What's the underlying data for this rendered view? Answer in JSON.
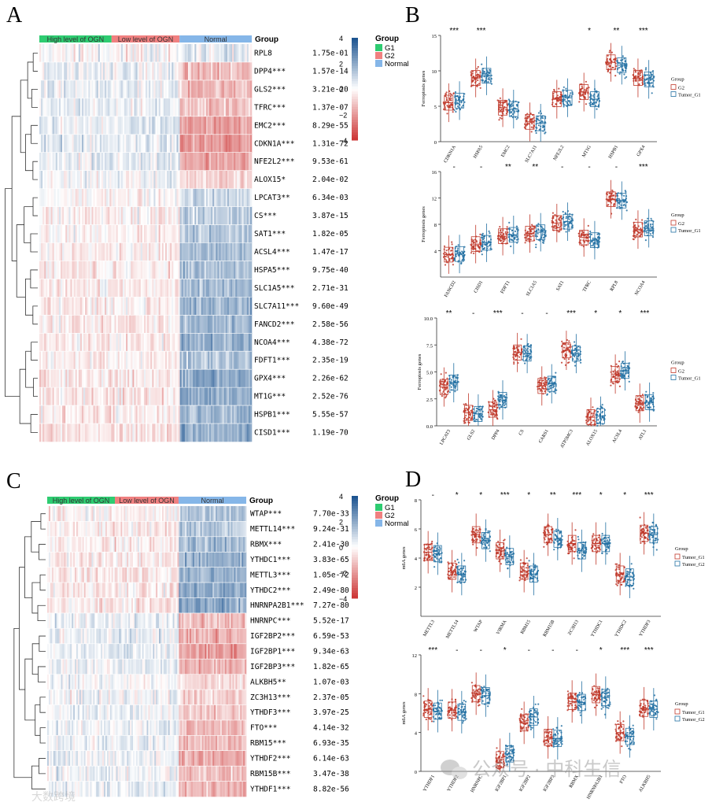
{
  "panels": {
    "A": {
      "label": "A",
      "group_bar": [
        "High level of OGN",
        "Low level of OGN",
        "Normal"
      ],
      "group_title": "Group",
      "legend_title": "Group",
      "legend_items": [
        "G1",
        "G2",
        "Normal"
      ],
      "scale_ticks": [
        "4",
        "2",
        "0",
        "−2",
        "−4"
      ],
      "genes": [
        "RPL8",
        "DPP4***",
        "GLS2***",
        "TFRC***",
        "EMC2***",
        "CDKN1A***",
        "NFE2L2***",
        "ALOX15*",
        "LPCAT3**",
        "CS***",
        "SAT1***",
        "ACSL4***",
        "HSPA5***",
        "SLC1A5***",
        "SLC7A11***",
        "FANCD2***",
        "NCOA4***",
        "FDFT1***",
        "GPX4***",
        "MT1G***",
        "HSPB1***",
        "CISD1***"
      ],
      "pvalues": [
        "1.75e-01",
        "1.57e-14",
        "3.21e-20",
        "1.37e-07",
        "8.29e-55",
        "1.31e-72",
        "9.53e-61",
        "2.04e-02",
        "6.34e-03",
        "3.87e-15",
        "1.82e-05",
        "1.47e-17",
        "9.75e-40",
        "2.71e-31",
        "9.60e-49",
        "2.58e-56",
        "4.38e-72",
        "2.35e-19",
        "2.26e-62",
        "2.52e-76",
        "5.55e-57",
        "1.19e-70"
      ]
    },
    "C": {
      "label": "C",
      "group_bar": [
        "High level of OGN",
        "Low level of OGN",
        "Normal"
      ],
      "group_title": "Group",
      "legend_title": "Group",
      "legend_items": [
        "G1",
        "G2",
        "Normal"
      ],
      "scale_ticks": [
        "4",
        "2",
        "0",
        "−2",
        "−4"
      ],
      "genes": [
        "WTAP***",
        "METTL14***",
        "RBMX***",
        "YTHDC1***",
        "METTL3***",
        "YTHDC2***",
        "HNRNPA2B1***",
        "HNRNPC***",
        "IGF2BP2***",
        "IGF2BP1***",
        "IGF2BP3***",
        "ALKBH5**",
        "ZC3H13***",
        "YTHDF3***",
        "FTO***",
        "RBM15***",
        "YTHDF2***",
        "RBM15B***",
        "YTHDF1***"
      ],
      "pvalues": [
        "7.70e-33",
        "9.24e-31",
        "2.41e-30",
        "3.83e-65",
        "1.05e-72",
        "2.49e-80",
        "7.27e-80",
        "5.52e-17",
        "6.59e-53",
        "9.34e-63",
        "1.82e-65",
        "1.07e-03",
        "2.37e-05",
        "3.97e-25",
        "4.14e-32",
        "6.93e-35",
        "6.14e-63",
        "3.47e-38",
        "8.82e-56"
      ]
    },
    "B": {
      "label": "B",
      "ylabel": "Ferroptosis genes",
      "legend_title": "Group",
      "legend_items": [
        "G2",
        "Tumor_G1"
      ],
      "rows": [
        {
          "ylim": [
            0,
            15
          ],
          "yticks": [
            "15",
            "10",
            "5",
            "0"
          ],
          "genes": [
            "CDKN1A",
            "HSPA5",
            "EMC2",
            "SLC7A11",
            "NFE2L2",
            "MT1G",
            "HSPB1",
            "GPX4"
          ],
          "sig": [
            "***",
            "***",
            "",
            "",
            "",
            "*",
            "**",
            "***"
          ],
          "medians": [
            [
              5.5,
              5.8
            ],
            [
              9,
              9.3
            ],
            [
              4.8,
              4.6
            ],
            [
              2.8,
              2.6
            ],
            [
              6,
              6.2
            ],
            [
              7,
              6
            ],
            [
              11.2,
              10.8
            ],
            [
              9,
              8.8
            ]
          ]
        },
        {
          "ylim": [
            0,
            16
          ],
          "yticks": [
            "16",
            "12",
            "8",
            "4"
          ],
          "genes": [
            "FANCD2",
            "CISD1",
            "FDFT1",
            "SLC1A5",
            "SAT1",
            "TFRC",
            "RPL8",
            "NCOA4"
          ],
          "sig": [
            "-",
            "-",
            "**",
            "**",
            "-",
            "-",
            "-",
            "***"
          ],
          "medians": [
            [
              3.4,
              3.5
            ],
            [
              5,
              5.2
            ],
            [
              6.2,
              6.4
            ],
            [
              6.6,
              6.8
            ],
            [
              8.2,
              8.4
            ],
            [
              6,
              5.6
            ],
            [
              11.8,
              11.6
            ],
            [
              7.2,
              7.4
            ]
          ]
        },
        {
          "ylim": [
            0,
            10
          ],
          "yticks": [
            "10.0",
            "7.5",
            "5.0",
            "2.5",
            "0.0"
          ],
          "genes": [
            "LPCAT3",
            "GLS2",
            "DPP4",
            "CS",
            "CARS1",
            "ATP5MC3",
            "ALOX15",
            "ACSL4",
            "ATL1"
          ],
          "sig": [
            "**",
            "-",
            "***",
            "-",
            "-",
            "***",
            "*",
            "*",
            "***"
          ],
          "medians": [
            [
              3.6,
              4
            ],
            [
              1.2,
              1.1
            ],
            [
              1.5,
              2.4
            ],
            [
              6.8,
              6.7
            ],
            [
              3.7,
              3.9
            ],
            [
              7,
              6.7
            ],
            [
              0.8,
              0.9
            ],
            [
              4.8,
              5.1
            ],
            [
              2.1,
              2.2
            ]
          ]
        }
      ]
    },
    "D": {
      "label": "D",
      "ylabel": "m6A genes",
      "legend_title": "Group",
      "legend_items": [
        "Tumor_G1",
        "Tumor_G2"
      ],
      "rows": [
        {
          "ylim": [
            0,
            8
          ],
          "yticks": [
            "8",
            "6",
            "4",
            "2"
          ],
          "genes": [
            "METTL3",
            "METTL14",
            "WTAP",
            "VIRMA",
            "RBM15",
            "RBM15B",
            "ZC3H13",
            "YTHDC1",
            "YTHDC2",
            "YTHDF3"
          ],
          "sig": [
            "-",
            "*",
            "*",
            "***",
            "*",
            "**",
            "***",
            "*",
            "*",
            "***"
          ],
          "medians": [
            [
              4.4,
              4.3
            ],
            [
              3.1,
              2.9
            ],
            [
              5.6,
              5.2
            ],
            [
              4.5,
              4.1
            ],
            [
              3.1,
              2.9
            ],
            [
              5.6,
              5.3
            ],
            [
              5,
              4.5
            ],
            [
              5,
              5
            ],
            [
              2.9,
              2.7
            ],
            [
              5.7,
              5.6
            ]
          ]
        },
        {
          "ylim": [
            0,
            12
          ],
          "yticks": [
            "12",
            "8",
            "4",
            "0"
          ],
          "genes": [
            "YTHDF1",
            "YTHDF2",
            "HNRNPC",
            "IGF2BP1",
            "IGF2BP2",
            "IGF2BP3",
            "RBMX",
            "HNRNPA2B1",
            "FTO",
            "ALKBH5"
          ],
          "sig": [
            "***",
            "-",
            "-",
            "*",
            "-",
            "-",
            "-",
            "*",
            "***",
            "***"
          ],
          "medians": [
            [
              6.4,
              6.2
            ],
            [
              6.3,
              6.1
            ],
            [
              8,
              7.8
            ],
            [
              1.2,
              1.8
            ],
            [
              5,
              5.6
            ],
            [
              3.5,
              3.4
            ],
            [
              7.2,
              7.1
            ],
            [
              7.9,
              7.6
            ],
            [
              4,
              3.6
            ],
            [
              6.5,
              6.4
            ]
          ]
        }
      ]
    }
  },
  "watermark": {
    "wechat": "公众号 · 中科生信",
    "corner": "大数跨境"
  },
  "colors": {
    "red": "#c0392b",
    "blue": "#2471a3",
    "green": "#2ecc71",
    "salmon": "#f08080",
    "skyblue": "#85b6e8"
  }
}
